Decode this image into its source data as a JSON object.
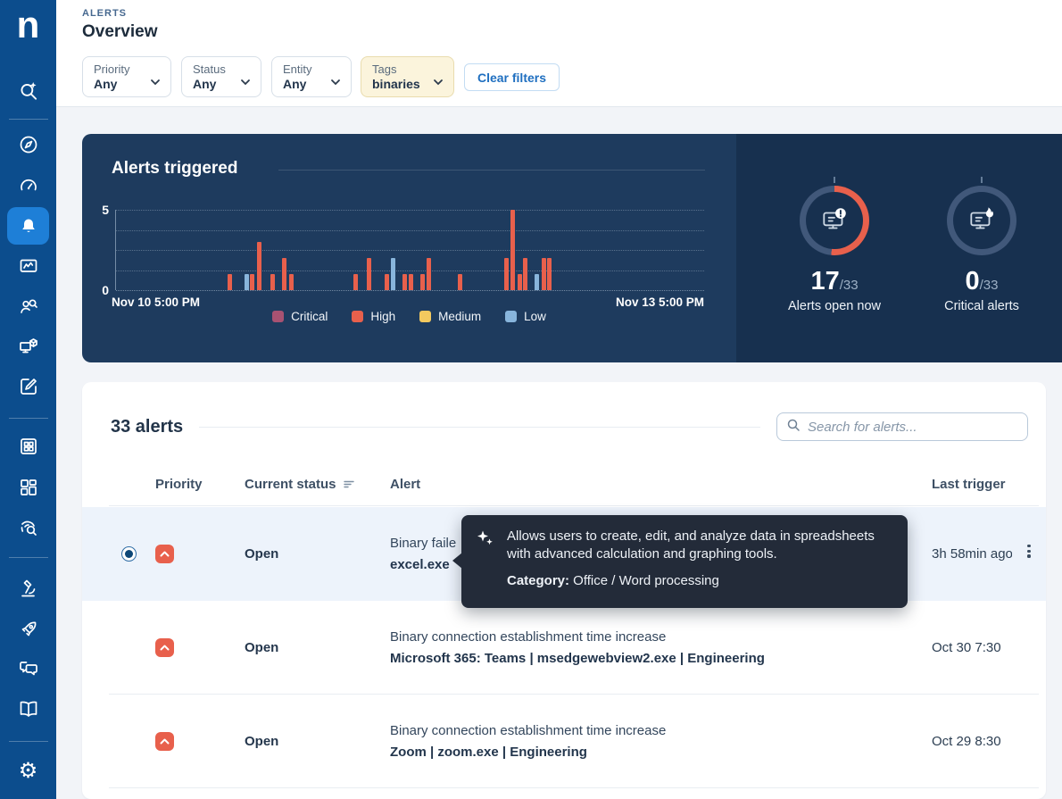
{
  "app": {
    "logo_letter": "n"
  },
  "header": {
    "eyebrow": "ALERTS",
    "title": "Overview",
    "filters": [
      {
        "label": "Priority",
        "value": "Any"
      },
      {
        "label": "Status",
        "value": "Any"
      },
      {
        "label": "Entity",
        "value": "Any"
      },
      {
        "label": "Tags",
        "value": "binaries"
      }
    ],
    "clear_filters": "Clear filters"
  },
  "hero": {
    "title": "Alerts triggered",
    "gauges": [
      {
        "value": "17",
        "total": "/33",
        "label": "Alerts open now",
        "percent": 51.5,
        "arc_color": "#e8604c",
        "icon": "monitor-alert"
      },
      {
        "value": "0",
        "total": "/33",
        "label": "Critical alerts",
        "percent": 0,
        "arc_color": "#e8604c",
        "icon": "monitor-flame"
      }
    ]
  },
  "chart_data": {
    "type": "bar",
    "title": "Alerts triggered",
    "x_axis": {
      "start_label": "Nov 10 5:00 PM",
      "end_label": "Nov 13 5:00 PM"
    },
    "y_axis": {
      "min": 0,
      "max": 5,
      "ticks": [
        0,
        5
      ]
    },
    "grid": true,
    "legend_position": "bottom",
    "legend": [
      "Critical",
      "High",
      "Medium",
      "Low"
    ],
    "series_colors": {
      "Critical": "#a85272",
      "High": "#e8604c",
      "Medium": "#f3c95f",
      "Low": "#88b5dc"
    },
    "bars": [
      {
        "t": 0.189,
        "value": 1,
        "severity": "High"
      },
      {
        "t": 0.219,
        "value": 1,
        "severity": "Low"
      },
      {
        "t": 0.228,
        "value": 1,
        "severity": "High"
      },
      {
        "t": 0.24,
        "value": 3,
        "severity": "High"
      },
      {
        "t": 0.262,
        "value": 1,
        "severity": "High"
      },
      {
        "t": 0.282,
        "value": 2,
        "severity": "High"
      },
      {
        "t": 0.294,
        "value": 1,
        "severity": "High"
      },
      {
        "t": 0.403,
        "value": 1,
        "severity": "High"
      },
      {
        "t": 0.426,
        "value": 2,
        "severity": "High"
      },
      {
        "t": 0.457,
        "value": 1,
        "severity": "High"
      },
      {
        "t": 0.467,
        "value": 2,
        "severity": "Low"
      },
      {
        "t": 0.487,
        "value": 1,
        "severity": "High"
      },
      {
        "t": 0.498,
        "value": 1,
        "severity": "High"
      },
      {
        "t": 0.517,
        "value": 1,
        "severity": "High"
      },
      {
        "t": 0.528,
        "value": 2,
        "severity": "High"
      },
      {
        "t": 0.581,
        "value": 1,
        "severity": "High"
      },
      {
        "t": 0.66,
        "value": 2,
        "severity": "High"
      },
      {
        "t": 0.671,
        "value": 5,
        "severity": "High"
      },
      {
        "t": 0.683,
        "value": 1,
        "severity": "High"
      },
      {
        "t": 0.692,
        "value": 2,
        "severity": "High"
      },
      {
        "t": 0.712,
        "value": 1,
        "severity": "Low"
      },
      {
        "t": 0.724,
        "value": 2,
        "severity": "High"
      },
      {
        "t": 0.733,
        "value": 2,
        "severity": "High"
      }
    ]
  },
  "table": {
    "count": "33 alerts",
    "search_placeholder": "Search for alerts...",
    "columns": [
      "Priority",
      "Current status",
      "Alert",
      "Last trigger"
    ],
    "rows": [
      {
        "priority": "high",
        "status": "Open",
        "alert_title": "Binary faile",
        "alert_subtitle": "excel.exe",
        "last_trigger": "3h 58min ago",
        "selected": true
      },
      {
        "priority": "high",
        "status": "Open",
        "alert_title": "Binary connection establishment time increase",
        "alert_subtitle": "Microsoft 365: Teams | msedgewebview2.exe | Engineering",
        "last_trigger": "Oct 30 7:30",
        "selected": false
      },
      {
        "priority": "high",
        "status": "Open",
        "alert_title": "Binary connection establishment time increase",
        "alert_subtitle": "Zoom | zoom.exe | Engineering",
        "last_trigger": "Oct 29 8:30",
        "selected": false
      }
    ]
  },
  "tooltip": {
    "description": "Allows users to create, edit, and analyze data in spreadsheets with advanced calculation and graphing tools.",
    "category_label": "Category:",
    "category_value": " Office / Word processing"
  },
  "colors": {
    "sidebar": "#0c4d8d",
    "sidebar_active": "#1e7fd7",
    "hero_bg": "#1e3b5e",
    "hero_right_bg": "#17304f",
    "gauge_track": "#41587a",
    "priority_high": "#e8604c",
    "selected_row": "#edf3fb",
    "tooltip_bg": "#232b39",
    "tags_chip_bg": "#fbf4dc",
    "link_blue": "#1f6fc0"
  }
}
